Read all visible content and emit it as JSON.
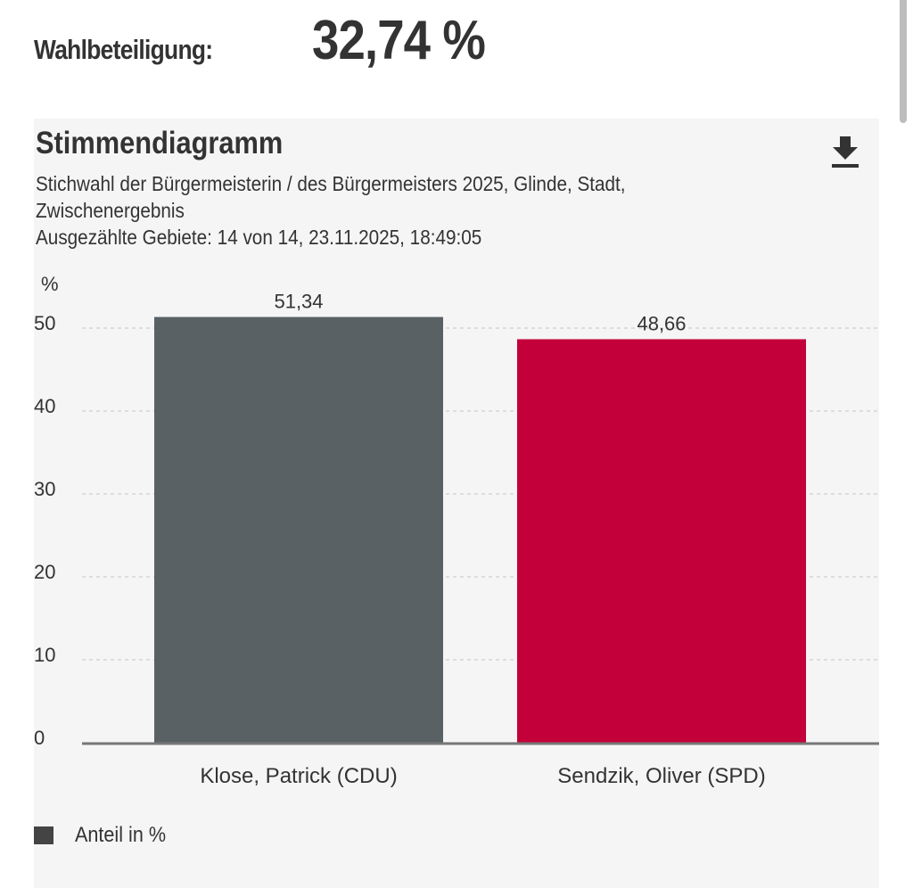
{
  "turnout": {
    "label": "Wahlbeteiligung:",
    "value": "32,74 %"
  },
  "card": {
    "title": "Stimmendiagramm",
    "download_icon": "download-icon",
    "subtitle_line1": "Stichwahl der Bürgermeisterin / des Bürgermeisters 2025, Glinde, Stadt,",
    "subtitle_line2": "Zwischenergebnis",
    "subtitle_line3": "Ausgezählte Gebiete: 14 von 14, 23.11.2025, 18:49:05"
  },
  "chart_data": {
    "type": "bar",
    "title": "Stimmendiagramm",
    "subtitle": "Stichwahl der Bürgermeisterin / des Bürgermeisters 2025, Glinde, Stadt, Zwischenergebnis",
    "categories": [
      "Klose, Patrick (CDU)",
      "Sendzik, Oliver (SPD)"
    ],
    "values": [
      51.34,
      48.66
    ],
    "value_labels": [
      "51,34",
      "48,66"
    ],
    "colors": [
      "#596164",
      "#c3003a"
    ],
    "xlabel": "",
    "ylabel": "%",
    "ylim": [
      0,
      50
    ],
    "yticks": [
      0,
      10,
      20,
      30,
      40,
      50
    ],
    "ytick_labels": [
      "0",
      "10",
      "20",
      "30",
      "40",
      "50"
    ],
    "grid": true,
    "legend": [
      {
        "label": "Anteil in %",
        "color": "#444444"
      }
    ],
    "legend_position": "bottom-left"
  }
}
